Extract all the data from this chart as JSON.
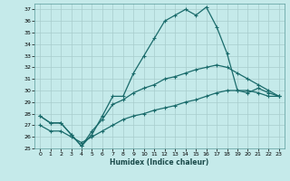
{
  "xlabel": "Humidex (Indice chaleur)",
  "bg_color": "#c5eaea",
  "line_color": "#1a6b6b",
  "grid_color": "#a8cccc",
  "xlim": [
    -0.5,
    23.5
  ],
  "ylim": [
    25,
    37.5
  ],
  "xticks": [
    0,
    1,
    2,
    3,
    4,
    5,
    6,
    7,
    8,
    9,
    10,
    11,
    12,
    13,
    14,
    15,
    16,
    17,
    18,
    19,
    20,
    21,
    22,
    23
  ],
  "yticks": [
    25,
    26,
    27,
    28,
    29,
    30,
    31,
    32,
    33,
    34,
    35,
    36,
    37
  ],
  "lines": [
    {
      "x": [
        0,
        1,
        2,
        3,
        4,
        5,
        6,
        7,
        8,
        9,
        10,
        11,
        12,
        13,
        14,
        15,
        16,
        17,
        18,
        19,
        20,
        21,
        22,
        23
      ],
      "y": [
        27.8,
        27.2,
        27.2,
        26.2,
        25.2,
        26.2,
        27.8,
        29.5,
        29.5,
        31.5,
        33.0,
        34.5,
        36.0,
        36.5,
        37.0,
        36.5,
        37.2,
        35.5,
        33.2,
        30.0,
        29.8,
        30.2,
        29.8,
        29.5
      ]
    },
    {
      "x": [
        0,
        1,
        2,
        3,
        4,
        5,
        6,
        7,
        8,
        9,
        10,
        11,
        12,
        13,
        14,
        15,
        16,
        17,
        18,
        19,
        20,
        21,
        22,
        23
      ],
      "y": [
        27.8,
        27.2,
        27.2,
        26.2,
        25.2,
        26.5,
        27.5,
        28.8,
        29.2,
        29.8,
        30.2,
        30.5,
        31.0,
        31.2,
        31.5,
        31.8,
        32.0,
        32.2,
        32.0,
        31.5,
        31.0,
        30.5,
        30.0,
        29.5
      ]
    },
    {
      "x": [
        0,
        1,
        2,
        3,
        4,
        5,
        6,
        7,
        8,
        9,
        10,
        11,
        12,
        13,
        14,
        15,
        16,
        17,
        18,
        19,
        20,
        21,
        22,
        23
      ],
      "y": [
        27.0,
        26.5,
        26.5,
        26.0,
        25.5,
        26.0,
        26.5,
        27.0,
        27.5,
        27.8,
        28.0,
        28.3,
        28.5,
        28.7,
        29.0,
        29.2,
        29.5,
        29.8,
        30.0,
        30.0,
        30.0,
        29.8,
        29.5,
        29.5
      ]
    }
  ]
}
